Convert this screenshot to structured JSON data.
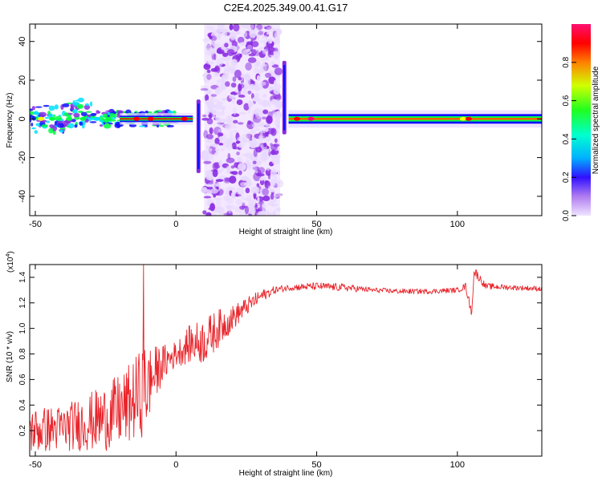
{
  "title": "C2E4.2025.349.00.41.G17",
  "chart_data": [
    {
      "type": "heatmap",
      "panel": "spectrogram",
      "xlabel": "Height of straight line (km)",
      "ylabel": "Frequency (Hz)",
      "xlim": [
        -52,
        130
      ],
      "ylim": [
        -50,
        49
      ],
      "x_ticks": [
        -50,
        0,
        50,
        100
      ],
      "y_ticks": [
        -40,
        -20,
        0,
        20,
        40
      ],
      "colorbar": {
        "label": "Normalized spectral amplitude",
        "range": [
          0,
          1
        ],
        "ticks": [
          "0.0",
          "0.2",
          "0.4",
          "0.6",
          "0.8"
        ],
        "colormap": [
          "#e8d8ff",
          "#8a2be2",
          "#1010ff",
          "#00e0ff",
          "#00ff40",
          "#ffff00",
          "#ff6000",
          "#ff0000",
          "#ff0080"
        ]
      },
      "features": {
        "noisy_start_range_km": [
          -52,
          -18
        ],
        "narrow_line_center_hz": 0,
        "broadband_noise_range_km": [
          10,
          37
        ],
        "clean_line_range_km": [
          40,
          130
        ],
        "transient_spikes_km": [
          8,
          38.5
        ],
        "line_amplitude_range": [
          0.75,
          0.95
        ]
      }
    },
    {
      "type": "line",
      "panel": "snr",
      "xlabel": "Height of straight line (km)",
      "ylabel": "SNR (10 * v/v)",
      "scale_label": "(x10",
      "scale_exponent": "4",
      "xlim": [
        -52,
        130
      ],
      "ylim": [
        0,
        1.5
      ],
      "x_ticks": [
        -50,
        0,
        50,
        100
      ],
      "y_ticks": [
        "0.2",
        "0.4",
        "0.6",
        "0.8",
        "1.0",
        "1.2",
        "1.4"
      ],
      "series": [
        {
          "color": "#e8252b",
          "trend_x": [
            -52,
            -40,
            -25,
            -18,
            -12,
            -5,
            0,
            5,
            10,
            15,
            20,
            25,
            30,
            35,
            40,
            50,
            60,
            70,
            80,
            90,
            100,
            103,
            105,
            106,
            110,
            120,
            130
          ],
          "trend_y": [
            0.2,
            0.22,
            0.3,
            0.38,
            0.5,
            0.72,
            0.8,
            0.88,
            0.9,
            1.0,
            1.08,
            1.17,
            1.25,
            1.3,
            1.32,
            1.33,
            1.32,
            1.3,
            1.29,
            1.29,
            1.3,
            1.33,
            1.12,
            1.45,
            1.33,
            1.32,
            1.31
          ],
          "noise_amplitude_y": [
            0.18,
            0.18,
            0.26,
            0.3,
            0.35,
            0.15,
            0.1,
            0.15,
            0.18,
            0.15,
            0.1,
            0.07,
            0.05,
            0.03,
            0.025,
            0.03,
            0.03,
            0.02,
            0.02,
            0.02,
            0.02,
            0.03,
            0.04,
            0.04,
            0.025,
            0.02,
            0.02
          ]
        }
      ]
    }
  ]
}
